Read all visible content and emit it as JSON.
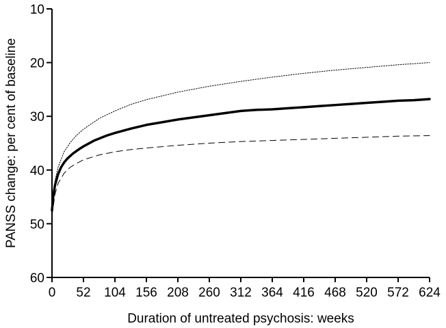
{
  "chart_data": {
    "type": "line",
    "xlabel": "Duration of untreated psychosis: weeks",
    "ylabel": "PANSS change: per cent of baseline",
    "xlim": [
      0,
      624
    ],
    "ylim": [
      10,
      60
    ],
    "y_inverted": true,
    "x_ticks": [
      0,
      52,
      104,
      156,
      208,
      260,
      312,
      364,
      416,
      468,
      520,
      572,
      624
    ],
    "y_ticks": [
      10,
      20,
      30,
      40,
      50,
      60
    ],
    "grid": false,
    "legend": "none",
    "series": [
      {
        "role": "estimate",
        "style": "solid-thick",
        "color": "#000000",
        "x": [
          0,
          2,
          5,
          10,
          15,
          20,
          26,
          35,
          45,
          52,
          70,
          90,
          104,
          130,
          156,
          182,
          208,
          234,
          260,
          286,
          312,
          338,
          364,
          390,
          416,
          442,
          468,
          494,
          520,
          546,
          572,
          598,
          624
        ],
        "y": [
          47.5,
          45.0,
          42.8,
          40.8,
          39.5,
          38.6,
          37.8,
          36.9,
          36.1,
          35.6,
          34.5,
          33.6,
          33.1,
          32.3,
          31.6,
          31.1,
          30.6,
          30.2,
          29.8,
          29.4,
          29.0,
          28.8,
          28.7,
          28.5,
          28.3,
          28.1,
          27.9,
          27.7,
          27.5,
          27.3,
          27.1,
          27.0,
          26.8
        ]
      },
      {
        "role": "upper-bound",
        "style": "dotted",
        "color": "#000000",
        "x": [
          0,
          5,
          10,
          20,
          30,
          40,
          52,
          78,
          104,
          130,
          156,
          208,
          260,
          312,
          364,
          416,
          468,
          520,
          572,
          624
        ],
        "y": [
          47.0,
          42.0,
          39.5,
          36.6,
          34.9,
          33.6,
          32.4,
          30.4,
          29.0,
          27.8,
          26.9,
          25.5,
          24.4,
          23.5,
          22.7,
          22.0,
          21.4,
          20.9,
          20.4,
          20.0
        ]
      },
      {
        "role": "lower-bound",
        "style": "dashed",
        "color": "#000000",
        "x": [
          0,
          5,
          10,
          20,
          30,
          40,
          52,
          78,
          104,
          130,
          156,
          208,
          260,
          312,
          364,
          416,
          468,
          520,
          572,
          624
        ],
        "y": [
          48.5,
          44.5,
          42.5,
          40.6,
          39.5,
          38.8,
          38.1,
          37.2,
          36.6,
          36.2,
          35.9,
          35.4,
          35.0,
          34.7,
          34.5,
          34.3,
          34.1,
          33.9,
          33.7,
          33.6
        ]
      }
    ]
  }
}
